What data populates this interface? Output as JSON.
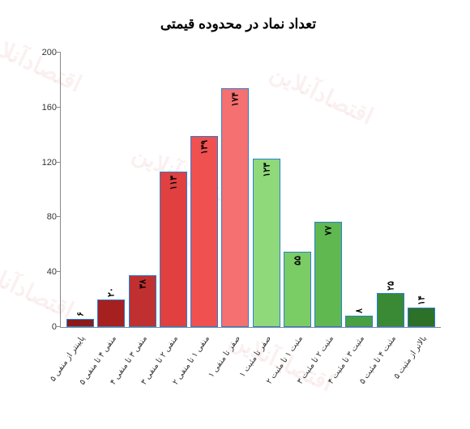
{
  "chart": {
    "type": "bar",
    "title": "تعداد نماد در محدوده قیمتی",
    "title_fontsize": 17,
    "background_color": "#ffffff",
    "ylim": [
      0,
      200
    ],
    "yticks": [
      0,
      40,
      80,
      120,
      160,
      200
    ],
    "axis_color": "#888888",
    "bar_border_color": "#2a7fd4",
    "label_fontsize": 10,
    "value_fontsize": 11,
    "categories": [
      "پایینتر از منفی ۵",
      "منفی ۴ تا منفی ۵",
      "منفی ۳ تا منفی ۴",
      "منفی ۲ تا منفی ۳",
      "منفی ۱ تا منفی ۲",
      "صفر تا منفی ۱",
      "صفر تا مثبت ۱",
      "مثبت ۱ تا مثبت ۲",
      "مثبت ۲ تا مثبت ۳",
      "مثبت ۳ تا مثبت ۴",
      "مثبت ۴ تا مثبت ۵",
      "بالاتر از مثبت ۵"
    ],
    "values": [
      6,
      20,
      38,
      113,
      139,
      174,
      123,
      55,
      77,
      8,
      25,
      14
    ],
    "value_labels": [
      "۶",
      "۲۰",
      "۳۸",
      "۱۱۳",
      "۱۳۹",
      "۱۷۴",
      "۱۲۳",
      "۵۵",
      "۷۷",
      "۸",
      "۲۵",
      "۱۴"
    ],
    "bar_colors": [
      "#8b1a1a",
      "#a62020",
      "#c03030",
      "#e04040",
      "#f05050",
      "#f57070",
      "#8fd97a",
      "#7acc65",
      "#5fb850",
      "#48a040",
      "#3a8a35",
      "#2d7028"
    ],
    "value_above_threshold": 30,
    "watermark_text": "اقتصادآنلاین",
    "watermark_color": "rgba(200,60,60,0.08)"
  }
}
